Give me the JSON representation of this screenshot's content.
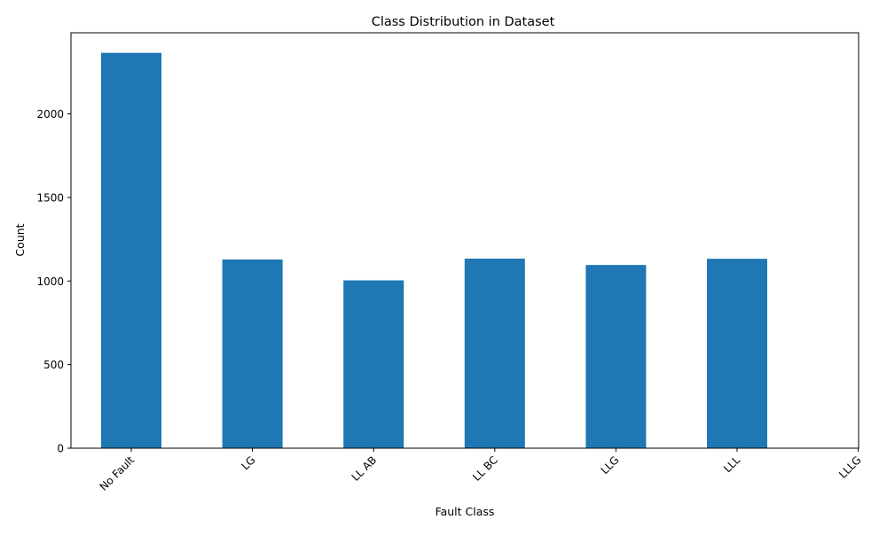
{
  "chart_data": {
    "type": "bar",
    "title": "Class Distribution in Dataset",
    "xlabel": "Fault Class",
    "ylabel": "Count",
    "categories": [
      "No Fault",
      "LG",
      "LL AB",
      "LL BC",
      "LLG",
      "LLL",
      "LLLG"
    ],
    "values": [
      2365,
      1129,
      1004,
      1134,
      1096,
      1133,
      0
    ],
    "ylim": [
      0,
      2485
    ],
    "yticks": [
      0,
      500,
      1000,
      1500,
      2000
    ],
    "grid": false,
    "bar_color": "#1f77b4"
  }
}
